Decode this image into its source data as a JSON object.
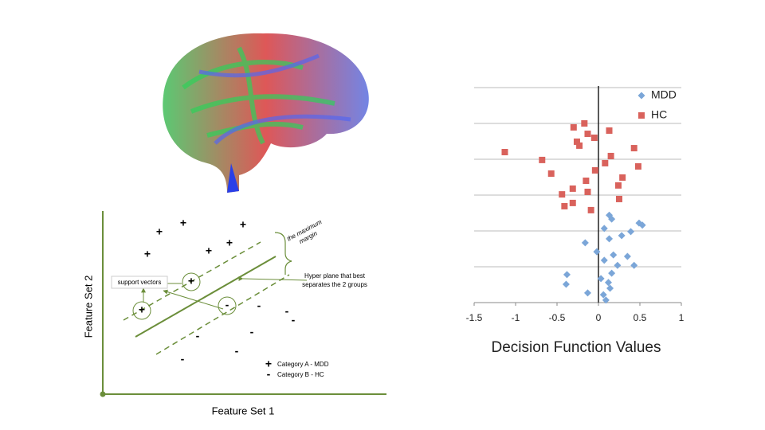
{
  "chart_data": {
    "type": "scatter",
    "x_label": "Decision Function Values",
    "xlim": [
      -1.5,
      1
    ],
    "xticks": [
      -1.5,
      -1,
      -0.5,
      0,
      0.5,
      1
    ],
    "ylim": [
      0,
      6
    ],
    "yticks": [
      0,
      1,
      2,
      3,
      4,
      5,
      6
    ],
    "grid": true,
    "legend": "top-right",
    "series": [
      {
        "name": "MDD",
        "color": "#7ba6d8",
        "marker": "diamond",
        "x": [
          0.13,
          0.16,
          0.07,
          0.49,
          0.53,
          0.28,
          0.39,
          0.13,
          -0.16,
          -0.02,
          0.18,
          0.35,
          0.07,
          0.23,
          0.43,
          -0.38,
          0.16,
          0.03,
          -0.39,
          0.12,
          0.14,
          -0.13,
          0.06,
          0.09
        ],
        "y": [
          2.44,
          2.33,
          2.07,
          2.22,
          2.16,
          1.87,
          1.98,
          1.78,
          1.67,
          1.42,
          1.33,
          1.29,
          1.18,
          1.04,
          1.04,
          0.78,
          0.82,
          0.67,
          0.51,
          0.56,
          0.4,
          0.27,
          0.22,
          0.07
        ]
      },
      {
        "name": "HC",
        "color": "#d9625c",
        "marker": "square",
        "x": [
          -0.17,
          -0.3,
          0.13,
          -0.13,
          -0.05,
          -0.26,
          -0.23,
          0.43,
          -1.13,
          0.15,
          -0.68,
          0.08,
          0.48,
          -0.57,
          -0.04,
          0.29,
          -0.15,
          0.24,
          -0.31,
          -0.13,
          -0.44,
          0.25,
          -0.31,
          -0.41,
          -0.09
        ],
        "y": [
          5.0,
          4.89,
          4.8,
          4.71,
          4.6,
          4.49,
          4.38,
          4.31,
          4.2,
          4.09,
          3.98,
          3.89,
          3.8,
          3.6,
          3.69,
          3.49,
          3.4,
          3.27,
          3.18,
          3.09,
          3.02,
          2.89,
          2.78,
          2.69,
          2.58
        ]
      }
    ]
  },
  "diagram": {
    "y_label": "Feature Set 2",
    "x_label": "Feature Set 1",
    "margin_label": [
      "the maximum",
      "margin"
    ],
    "hyperplane_label": [
      "Hyper plane that best",
      "separates the 2 groups"
    ],
    "support_vectors_label": "support vectors",
    "legend": [
      "Category A - MDD",
      "Category B - HC"
    ]
  }
}
